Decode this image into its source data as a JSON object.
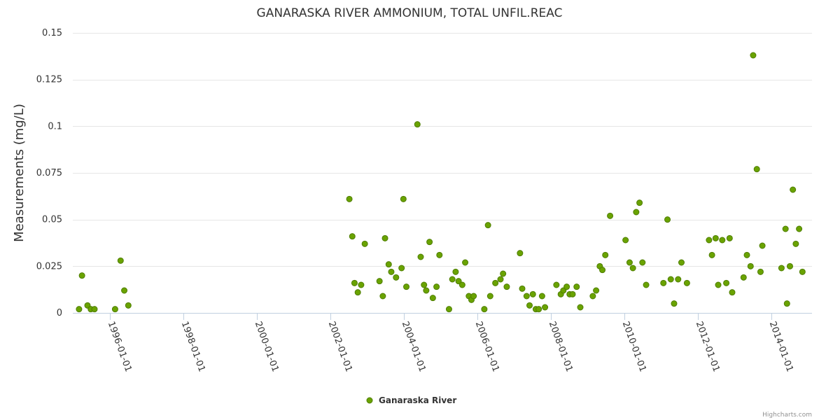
{
  "colors": {
    "series": "#6aa300",
    "series_stroke": "#4e7d00",
    "text": "#333333",
    "grid": "#e6e6e6",
    "axis": "#c0d0e0",
    "credits": "#909090"
  },
  "credits": "Highcharts.com",
  "chart_data": {
    "type": "scatter",
    "title": "GANARASKA RIVER AMMONIUM, TOTAL UNFIL.REAC",
    "xlabel": "",
    "ylabel": "Measurements (mg/L)",
    "xlim": [
      1995.0,
      2015.1
    ],
    "ylim": [
      0,
      0.15
    ],
    "yticks": [
      0,
      0.025,
      0.05,
      0.075,
      0.1,
      0.125,
      0.15
    ],
    "ytick_labels": [
      "0",
      "0.025",
      "0.05",
      "0.075",
      "0.1",
      "0.125",
      "0.15"
    ],
    "xticks": [
      1996,
      1998,
      2000,
      2002,
      2004,
      2006,
      2008,
      2010,
      2012,
      2014
    ],
    "xtick_labels": [
      "1996-01-01",
      "1998-01-01",
      "2000-01-01",
      "2002-01-01",
      "2004-01-01",
      "2006-01-01",
      "2008-01-01",
      "2010-01-01",
      "2012-01-01",
      "2014-01-01"
    ],
    "legend_position": "bottom-center",
    "series": [
      {
        "name": "Ganaraska River",
        "x": [
          1995.17,
          1995.25,
          1995.4,
          1995.49,
          1995.59,
          1996.15,
          1996.3,
          1996.4,
          1996.51,
          2002.52,
          2002.6,
          2002.66,
          2002.75,
          2002.84,
          2002.94,
          2003.34,
          2003.43,
          2003.49,
          2003.59,
          2003.66,
          2003.79,
          2003.94,
          2003.99,
          2004.07,
          2004.37,
          2004.46,
          2004.55,
          2004.61,
          2004.7,
          2004.79,
          2004.89,
          2004.97,
          2005.23,
          2005.32,
          2005.41,
          2005.49,
          2005.59,
          2005.67,
          2005.77,
          2005.84,
          2005.9,
          2006.19,
          2006.29,
          2006.35,
          2006.49,
          2006.63,
          2006.7,
          2006.8,
          2007.16,
          2007.22,
          2007.34,
          2007.42,
          2007.51,
          2007.59,
          2007.67,
          2007.76,
          2007.84,
          2008.15,
          2008.27,
          2008.34,
          2008.43,
          2008.51,
          2008.59,
          2008.7,
          2008.8,
          2009.14,
          2009.23,
          2009.33,
          2009.4,
          2009.48,
          2009.61,
          2010.03,
          2010.14,
          2010.23,
          2010.32,
          2010.41,
          2010.49,
          2010.59,
          2011.06,
          2011.17,
          2011.26,
          2011.35,
          2011.46,
          2011.55,
          2011.7,
          2012.3,
          2012.38,
          2012.48,
          2012.55,
          2012.66,
          2012.77,
          2012.86,
          2012.93,
          2013.24,
          2013.33,
          2013.43,
          2013.5,
          2013.6,
          2013.7,
          2013.75,
          2014.27,
          2014.38,
          2014.42,
          2014.5,
          2014.58,
          2014.66,
          2014.75,
          2014.84
        ],
        "y": [
          0.002,
          0.02,
          0.004,
          0.002,
          0.002,
          0.002,
          0.028,
          0.012,
          0.004,
          0.061,
          0.041,
          0.016,
          0.011,
          0.015,
          0.037,
          0.017,
          0.009,
          0.04,
          0.026,
          0.022,
          0.019,
          0.024,
          0.061,
          0.014,
          0.101,
          0.03,
          0.015,
          0.012,
          0.038,
          0.008,
          0.014,
          0.031,
          0.002,
          0.018,
          0.022,
          0.017,
          0.015,
          0.027,
          0.009,
          0.007,
          0.009,
          0.002,
          0.047,
          0.009,
          0.016,
          0.018,
          0.021,
          0.014,
          0.032,
          0.013,
          0.009,
          0.004,
          0.01,
          0.002,
          0.002,
          0.009,
          0.003,
          0.015,
          0.01,
          0.012,
          0.014,
          0.01,
          0.01,
          0.014,
          0.003,
          0.009,
          0.012,
          0.025,
          0.023,
          0.031,
          0.052,
          0.039,
          0.027,
          0.024,
          0.054,
          0.059,
          0.027,
          0.015,
          0.016,
          0.05,
          0.018,
          0.005,
          0.018,
          0.027,
          0.016,
          0.039,
          0.031,
          0.04,
          0.015,
          0.039,
          0.016,
          0.04,
          0.011,
          0.019,
          0.031,
          0.025,
          0.138,
          0.077,
          0.022,
          0.036,
          0.024,
          0.045,
          0.005,
          0.025,
          0.066,
          0.037,
          0.045,
          0.022
        ]
      }
    ]
  }
}
